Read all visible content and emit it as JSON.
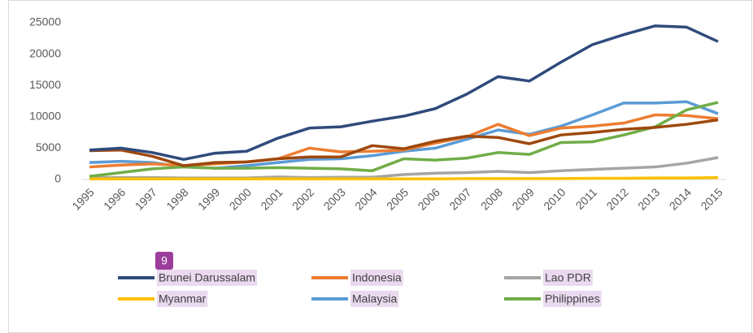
{
  "chart_data": {
    "type": "line",
    "categories": [
      "1995",
      "1996",
      "1997",
      "1998",
      "1999",
      "2000",
      "2001",
      "2002",
      "2003",
      "2004",
      "2005",
      "2006",
      "2007",
      "2008",
      "2009",
      "2010",
      "2011",
      "2012",
      "2013",
      "2014",
      "2015"
    ],
    "ylim": [
      0,
      25000
    ],
    "yticks": [
      0,
      5000,
      10000,
      15000,
      20000,
      25000
    ],
    "grid": false,
    "annotation": "9",
    "series": [
      {
        "name": "Brunei Darussalam",
        "color": "#2f4b7c",
        "values": [
          4700,
          5000,
          4300,
          3200,
          4200,
          4500,
          6600,
          8200,
          8400,
          9300,
          10100,
          11300,
          13600,
          16400,
          15700,
          18700,
          21500,
          23100,
          24500,
          24300,
          22000
        ]
      },
      {
        "name": "Indonesia",
        "color": "#ed7d31",
        "values": [
          2000,
          2300,
          2500,
          2200,
          2500,
          2800,
          3300,
          5000,
          4400,
          4500,
          4700,
          5800,
          6800,
          8800,
          7000,
          8200,
          8500,
          9000,
          10300,
          10200,
          9700
        ]
      },
      {
        "name": "Lao PDR",
        "color": "#a5a5a5",
        "values": [
          300,
          300,
          300,
          250,
          250,
          250,
          400,
          300,
          350,
          350,
          800,
          1000,
          1100,
          1300,
          1100,
          1400,
          1600,
          1800,
          2000,
          2600,
          3500
        ]
      },
      {
        "name": "Myanmar",
        "color": "#ffc000",
        "values": [
          100,
          100,
          100,
          100,
          100,
          100,
          100,
          100,
          100,
          100,
          100,
          100,
          150,
          150,
          150,
          150,
          200,
          200,
          250,
          250,
          300
        ]
      },
      {
        "name": "Malaysia",
        "color": "#5b9bd5",
        "values": [
          2700,
          2900,
          2700,
          2000,
          1800,
          2200,
          2700,
          3200,
          3300,
          3800,
          4500,
          5000,
          6400,
          7900,
          7200,
          8500,
          10300,
          12200,
          12200,
          12400,
          10500
        ]
      },
      {
        "name": "Philippines",
        "color": "#70ad47",
        "values": [
          500,
          1100,
          1700,
          2000,
          1800,
          1800,
          1900,
          1800,
          1700,
          1400,
          3300,
          3100,
          3400,
          4300,
          4000,
          5900,
          6000,
          7100,
          8400,
          11100,
          12300
        ]
      },
      {
        "color": "#9e480e",
        "values": [
          4600,
          4700,
          3700,
          2200,
          2700,
          2800,
          3300,
          3600,
          3600,
          5400,
          4900,
          6100,
          6900,
          6700,
          5700,
          7100,
          7500,
          8000,
          8300,
          8800,
          9500
        ]
      }
    ]
  }
}
